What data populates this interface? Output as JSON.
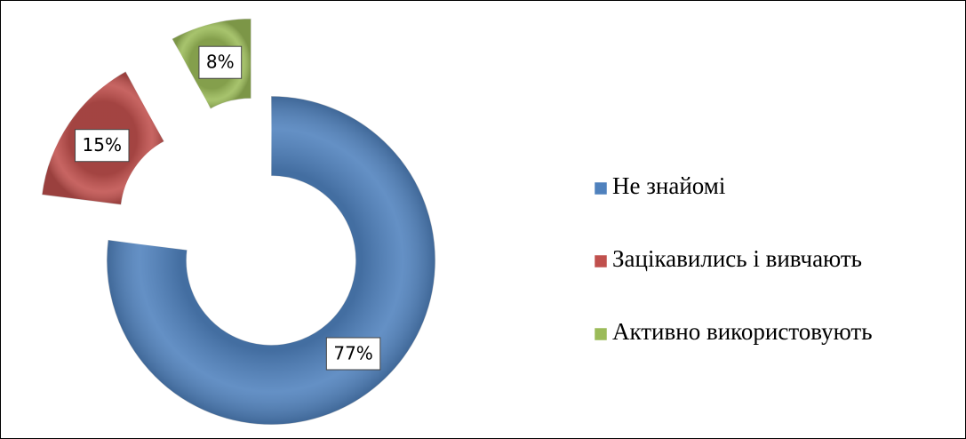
{
  "chart_data": {
    "type": "donut",
    "categories": [
      "Не знайомі",
      "Зацікавились і вивчають",
      "Активно використовують"
    ],
    "values": [
      77,
      15,
      8
    ],
    "value_labels": [
      "77%",
      "15%",
      "8%"
    ],
    "colors": [
      "#4f81bd",
      "#c0504d",
      "#9bbb59"
    ],
    "legend": "right"
  }
}
